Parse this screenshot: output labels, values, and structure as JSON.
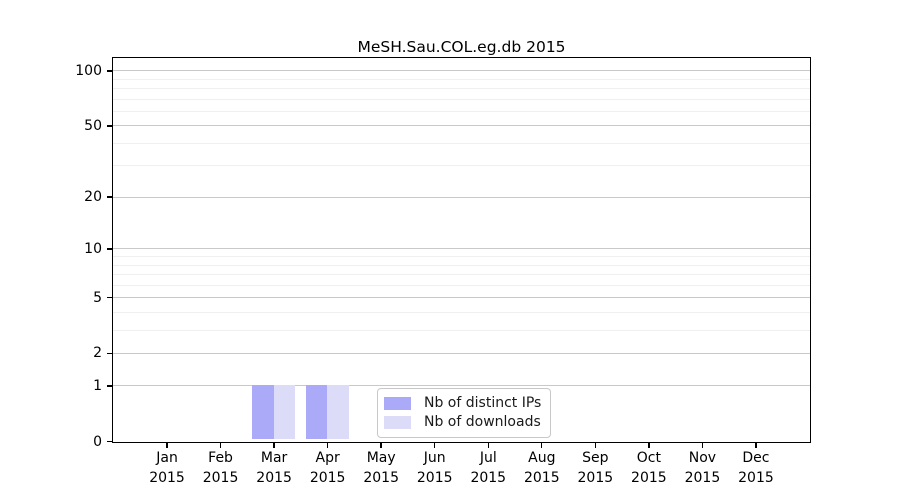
{
  "chart_data": {
    "type": "bar",
    "title": "MeSH.Sau.COL.eg.db 2015",
    "categories": [
      "Jan",
      "Feb",
      "Mar",
      "Apr",
      "May",
      "Jun",
      "Jul",
      "Aug",
      "Sep",
      "Oct",
      "Nov",
      "Dec"
    ],
    "category_sublabel": "2015",
    "series": [
      {
        "name": "Nb of distinct IPs",
        "color": "#aaaaf8",
        "values": [
          0,
          0,
          1,
          1,
          0,
          0,
          0,
          0,
          0,
          0,
          0,
          0
        ]
      },
      {
        "name": "Nb of downloads",
        "color": "#dcdcf8",
        "values": [
          0,
          0,
          1,
          1,
          0,
          0,
          0,
          0,
          0,
          0,
          0,
          0
        ]
      }
    ],
    "xlabel": "",
    "ylabel": "",
    "yscale": "log1p",
    "ylim": [
      0,
      117
    ],
    "yticks": [
      0,
      1,
      2,
      5,
      10,
      20,
      50,
      100
    ],
    "minor_gridlines": [
      3,
      4,
      6,
      7,
      8,
      9,
      30,
      40,
      60,
      70,
      80,
      90
    ],
    "grid": "horizontal",
    "legend_position": "inside-bottom-center",
    "colors": {
      "major_grid": "#c9c9c9",
      "minor_grid": "#efefef",
      "spine": "#000000",
      "background": "#ffffff"
    }
  }
}
